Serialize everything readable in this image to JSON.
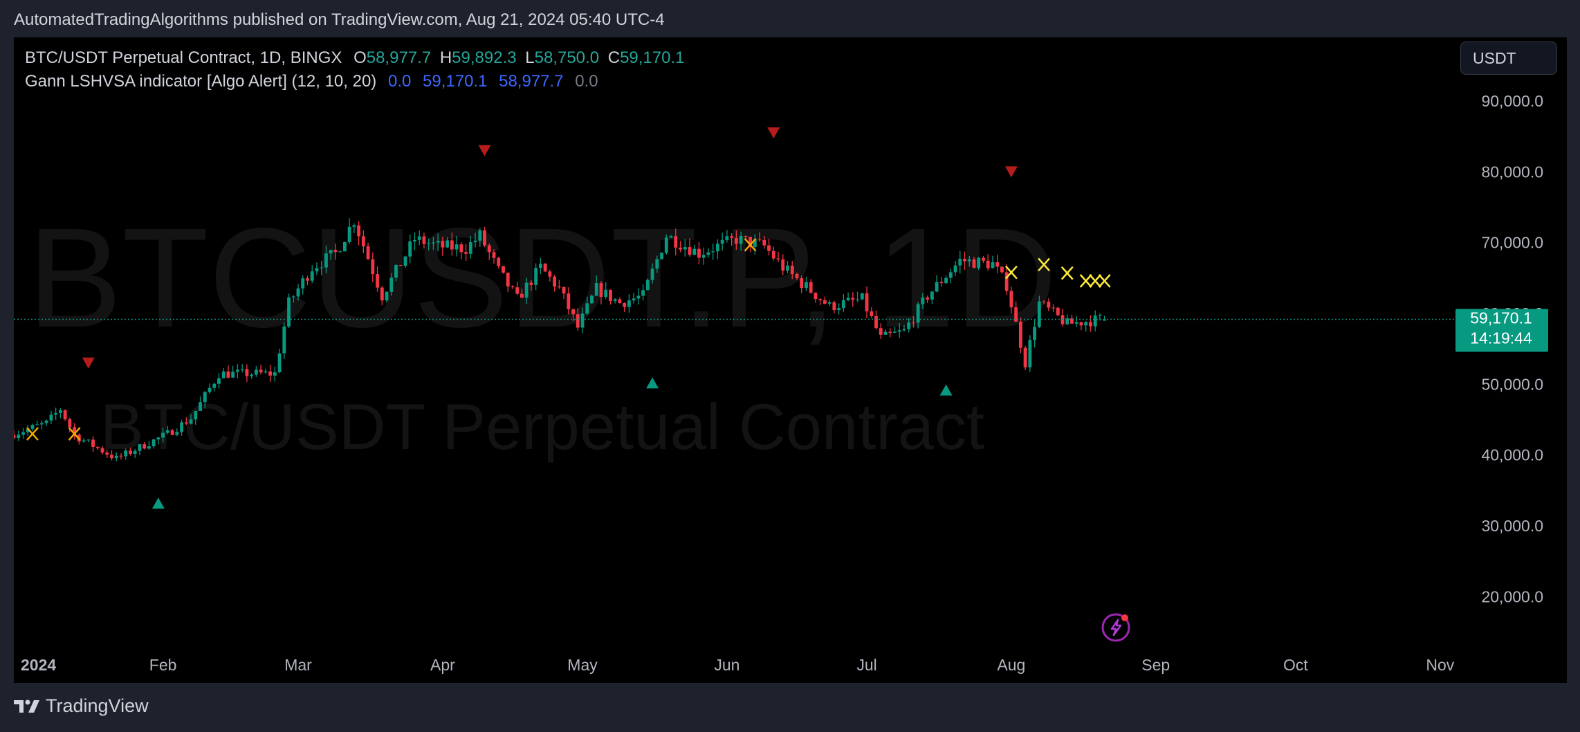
{
  "header": {
    "published": "AutomatedTradingAlgorithms published on TradingView.com, Aug 21, 2024 05:40 UTC-4"
  },
  "legend": {
    "symbol": "BTC/USDT Perpetual Contract, 1D, BINGX",
    "o_label": "O",
    "o_value": "58,977.7",
    "h_label": "H",
    "h_value": "59,892.3",
    "l_label": "L",
    "l_value": "58,750.0",
    "c_label": "C",
    "c_value": "59,170.1",
    "indicator": "Gann LSHVSA indicator [Algo Alert] (12, 10, 20)",
    "ind_v1": "0.0",
    "ind_v2": "59,170.1",
    "ind_v3": "58,977.7",
    "ind_v4": "0.0"
  },
  "currency_button": "USDT",
  "watermark": {
    "symbol": "BTCUSDT.P, 1D",
    "name": "BTC/USDT Perpetual Contract"
  },
  "price_label": {
    "price": "59,170.1",
    "countdown": "14:19:44"
  },
  "footer": {
    "brand": "TradingView"
  },
  "icons": {
    "logo": "tradingview-logo-icon",
    "alert": "lightning-alert-icon"
  },
  "colors": {
    "up": "#089981",
    "down": "#f23645",
    "cross": "#ffeb3b",
    "buy_signal": "#089981",
    "sell_signal": "#b71c1c",
    "price_line": "#089981",
    "indicator": "#3d68ff"
  },
  "chart_data": {
    "type": "candlestick",
    "y_axis_ticks": [
      "90,000.0",
      "80,000.0",
      "70,000.0",
      "60,000.0",
      "50,000.0",
      "40,000.0",
      "30,000.0",
      "20,000.0"
    ],
    "y_axis_values": [
      90000,
      80000,
      70000,
      60000,
      50000,
      40000,
      30000,
      20000
    ],
    "x_axis_ticks": [
      "2024",
      "Feb",
      "Mar",
      "Apr",
      "May",
      "Jun",
      "Jul",
      "Aug",
      "Sep",
      "Oct",
      "Nov"
    ],
    "x_axis_dates": [
      "2024-01-01",
      "2024-02-01",
      "2024-03-01",
      "2024-04-01",
      "2024-05-01",
      "2024-06-01",
      "2024-07-01",
      "2024-08-01",
      "2024-09-01",
      "2024-10-01",
      "2024-11-01"
    ],
    "ylim": [
      13000,
      99000
    ],
    "xlim": [
      "2023-12-31",
      "2024-11-04"
    ],
    "last_price": 59170.1,
    "price_anchors": [
      [
        "2023-12-31",
        42800
      ],
      [
        "2024-01-08",
        44500
      ],
      [
        "2024-01-11",
        46500
      ],
      [
        "2024-01-14",
        42800
      ],
      [
        "2024-01-23",
        39500
      ],
      [
        "2024-02-03",
        43000
      ],
      [
        "2024-02-08",
        45200
      ],
      [
        "2024-02-14",
        51500
      ],
      [
        "2024-02-26",
        51500
      ],
      [
        "2024-02-29",
        61500
      ],
      [
        "2024-03-05",
        66500
      ],
      [
        "2024-03-10",
        68500
      ],
      [
        "2024-03-14",
        73200
      ],
      [
        "2024-03-20",
        62500
      ],
      [
        "2024-03-27",
        70500
      ],
      [
        "2024-04-01",
        69500
      ],
      [
        "2024-04-07",
        69200
      ],
      [
        "2024-04-10",
        71000
      ],
      [
        "2024-04-14",
        66000
      ],
      [
        "2024-04-18",
        62000
      ],
      [
        "2024-04-23",
        66500
      ],
      [
        "2024-04-27",
        63500
      ],
      [
        "2024-05-01",
        58000
      ],
      [
        "2024-05-05",
        63500
      ],
      [
        "2024-05-10",
        61500
      ],
      [
        "2024-05-15",
        62500
      ],
      [
        "2024-05-20",
        71000
      ],
      [
        "2024-05-27",
        68500
      ],
      [
        "2024-06-04",
        70500
      ],
      [
        "2024-06-10",
        69500
      ],
      [
        "2024-06-14",
        66500
      ],
      [
        "2024-06-24",
        61000
      ],
      [
        "2024-07-01",
        62000
      ],
      [
        "2024-07-05",
        56500
      ],
      [
        "2024-07-10",
        57500
      ],
      [
        "2024-07-15",
        62500
      ],
      [
        "2024-07-22",
        67500
      ],
      [
        "2024-07-29",
        67000
      ],
      [
        "2024-08-01",
        64000
      ],
      [
        "2024-08-05",
        53000
      ],
      [
        "2024-08-08",
        61500
      ],
      [
        "2024-08-14",
        58500
      ],
      [
        "2024-08-21",
        59170
      ]
    ],
    "sell_signals": [
      {
        "date": "2024-01-16",
        "value": 53000
      },
      {
        "date": "2024-04-10",
        "value": 83000
      },
      {
        "date": "2024-06-11",
        "value": 85500
      },
      {
        "date": "2024-08-01",
        "value": 80000
      }
    ],
    "buy_signals": [
      {
        "date": "2024-01-31",
        "value": 33200
      },
      {
        "date": "2024-05-16",
        "value": 50200
      },
      {
        "date": "2024-07-18",
        "value": 49200
      }
    ],
    "cross_markers": [
      {
        "date": "2024-01-04",
        "value": 43000,
        "color": "#f7a600"
      },
      {
        "date": "2024-01-13",
        "value": 43000,
        "color": "#f7a600"
      },
      {
        "date": "2024-06-06",
        "value": 69700,
        "color": "#f7a600"
      },
      {
        "date": "2024-08-01",
        "value": 65800,
        "color": "#ffeb3b"
      },
      {
        "date": "2024-08-08",
        "value": 66900,
        "color": "#ffeb3b"
      },
      {
        "date": "2024-08-13",
        "value": 65700,
        "color": "#ffeb3b"
      },
      {
        "date": "2024-08-17",
        "value": 64600,
        "color": "#ffeb3b"
      },
      {
        "date": "2024-08-19",
        "value": 64600,
        "color": "#ffeb3b"
      },
      {
        "date": "2024-08-21",
        "value": 64600,
        "color": "#ffeb3b"
      }
    ]
  }
}
